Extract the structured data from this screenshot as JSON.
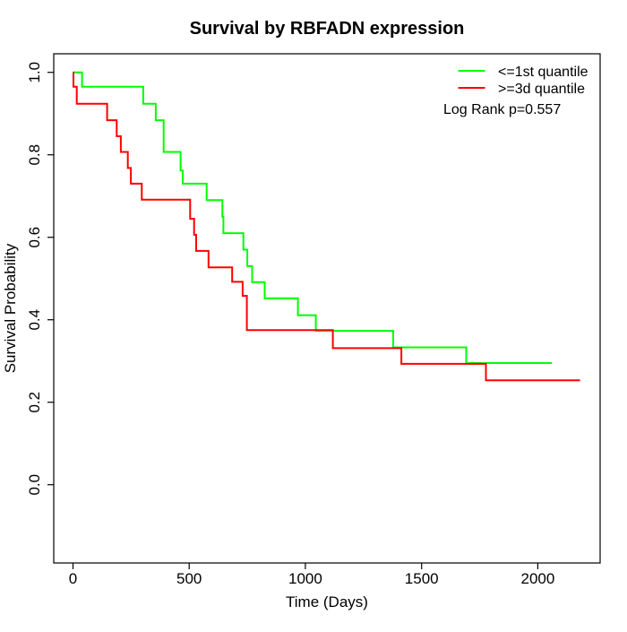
{
  "chart_data": {
    "type": "line",
    "subtype": "kaplan_meier_step",
    "title": "Survival by RBFADN expression",
    "xlabel": "Time (Days)",
    "ylabel": "Survival Probability",
    "xlim": [
      0,
      2250
    ],
    "ylim": [
      0,
      1
    ],
    "x_ticks": [
      0,
      500,
      1000,
      1500,
      2000
    ],
    "y_ticks": [
      0,
      0.2,
      0.4,
      0.6,
      0.8,
      1
    ],
    "grid": false,
    "legend_position": "topright",
    "annotation": "Log Rank p=0.557",
    "series": [
      {
        "id": "le-1st-quantile",
        "name": "<=1st quantile",
        "color": "#00ff00",
        "start": {
          "time": 0,
          "prob": 1.0
        },
        "steps": [
          [
            39,
            0.965
          ],
          [
            302,
            0.924
          ],
          [
            356,
            0.884
          ],
          [
            390,
            0.807
          ],
          [
            463,
            0.762
          ],
          [
            472,
            0.73
          ],
          [
            575,
            0.69
          ],
          [
            643,
            0.65
          ],
          [
            647,
            0.61
          ],
          [
            733,
            0.57
          ],
          [
            750,
            0.53
          ],
          [
            771,
            0.491
          ],
          [
            825,
            0.452
          ],
          [
            968,
            0.411
          ],
          [
            1045,
            0.373
          ],
          [
            1378,
            0.333
          ],
          [
            1692,
            0.295
          ]
        ],
        "end_time": 2060
      },
      {
        "id": "ge-3d-quantile",
        "name": ">=3d quantile",
        "color": "#ff0000",
        "start": {
          "time": 0,
          "prob": 1.0
        },
        "steps": [
          [
            2,
            0.965
          ],
          [
            16,
            0.924
          ],
          [
            147,
            0.884
          ],
          [
            188,
            0.845
          ],
          [
            206,
            0.807
          ],
          [
            236,
            0.768
          ],
          [
            249,
            0.73
          ],
          [
            296,
            0.691
          ],
          [
            504,
            0.645
          ],
          [
            521,
            0.606
          ],
          [
            530,
            0.567
          ],
          [
            583,
            0.527
          ],
          [
            685,
            0.492
          ],
          [
            730,
            0.458
          ],
          [
            748,
            0.375
          ],
          [
            1118,
            0.331
          ],
          [
            1413,
            0.293
          ],
          [
            1777,
            0.253
          ]
        ],
        "end_time": 2182
      }
    ]
  }
}
